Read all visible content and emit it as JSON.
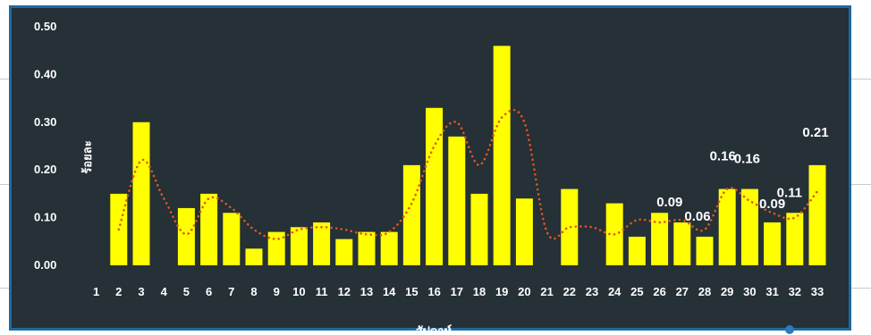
{
  "chart_data": {
    "type": "bar",
    "title": "",
    "xlabel": "สัปดาห์",
    "ylabel": "ร้อยละ",
    "categories": [
      "1",
      "2",
      "3",
      "4",
      "5",
      "6",
      "7",
      "8",
      "9",
      "10",
      "11",
      "12",
      "13",
      "14",
      "15",
      "16",
      "17",
      "18",
      "19",
      "20",
      "21",
      "22",
      "23",
      "24",
      "25",
      "26",
      "27",
      "28",
      "29",
      "30",
      "31",
      "32",
      "33"
    ],
    "values": [
      null,
      0.15,
      0.3,
      null,
      0.12,
      0.15,
      0.11,
      0.035,
      0.07,
      0.08,
      0.09,
      0.055,
      0.07,
      0.07,
      0.21,
      0.33,
      0.27,
      0.15,
      0.46,
      0.14,
      null,
      0.16,
      null,
      0.13,
      0.06,
      0.11,
      0.09,
      0.06,
      0.16,
      0.16,
      0.09,
      0.11,
      0.21
    ],
    "data_labels": [
      {
        "category": "27",
        "text": "0.09"
      },
      {
        "category": "28",
        "text": "0.06"
      },
      {
        "category": "29",
        "text": "0.16"
      },
      {
        "category": "30",
        "text": "0.16"
      },
      {
        "category": "31",
        "text": "0.09"
      },
      {
        "category": "32",
        "text": "0.11"
      },
      {
        "category": "33",
        "text": "0.21"
      }
    ],
    "trendline": {
      "style": "dotted",
      "color": "#e0561f",
      "x_start": 2,
      "values": [
        0.075,
        0.22,
        0.14,
        0.065,
        0.14,
        0.12,
        0.075,
        0.055,
        0.075,
        0.08,
        0.075,
        0.065,
        0.07,
        0.13,
        0.25,
        0.3,
        0.21,
        0.31,
        0.3,
        0.07,
        0.08,
        0.08,
        0.065,
        0.095,
        0.09,
        0.095,
        0.075,
        0.16,
        0.135,
        0.11,
        0.1,
        0.155
      ]
    },
    "yticks": [
      "0.00",
      "0.10",
      "0.20",
      "0.30",
      "0.40",
      "0.50"
    ],
    "ylim": [
      0,
      0.5
    ],
    "bar_color": "#ffff00",
    "background_color": "#253037",
    "grid": false,
    "legend": "none"
  }
}
